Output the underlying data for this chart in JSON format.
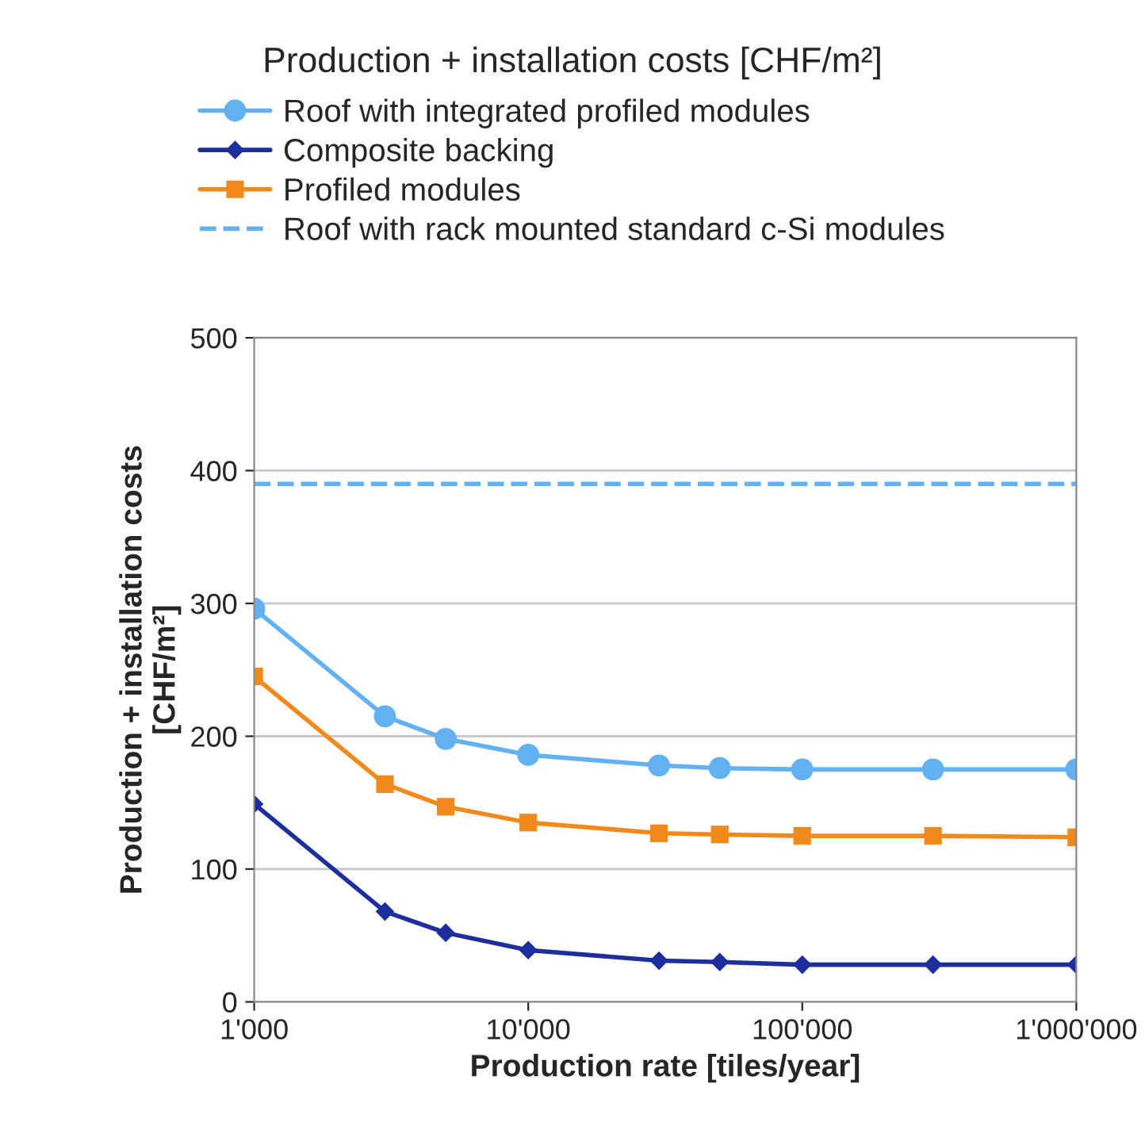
{
  "chart_data": {
    "type": "line",
    "title": "Production + installation costs [CHF/m²]",
    "xlabel": "Production rate [tiles/year]",
    "ylabel": "Production + installation costs\n[CHF/m²]",
    "x": [
      1000,
      3000,
      5000,
      10000,
      30000,
      50000,
      100000,
      300000,
      1000000
    ],
    "series": [
      {
        "name": "Roof with integrated profiled modules",
        "color": "#63b1f2",
        "marker": "circle",
        "values": [
          296,
          215,
          198,
          186,
          178,
          176,
          175,
          175,
          175
        ]
      },
      {
        "name": "Composite backing",
        "color": "#1c2f9c",
        "marker": "diamond",
        "values": [
          149,
          68,
          52,
          39,
          31,
          30,
          28,
          28,
          28
        ]
      },
      {
        "name": "Profiled modules",
        "color": "#f08a1c",
        "marker": "square",
        "values": [
          245,
          164,
          147,
          135,
          127,
          126,
          125,
          125,
          124
        ]
      },
      {
        "name": "Roof with rack mounted standard c-Si modules",
        "color": "#63b1f2",
        "marker": "none",
        "line_style": "dashed",
        "x": [
          1000,
          1000000
        ],
        "values": [
          390,
          390
        ]
      }
    ],
    "log": "x",
    "xlim": [
      1000,
      1000000
    ],
    "xticks": [
      {
        "value": 1000,
        "label": "1'000"
      },
      {
        "value": 10000,
        "label": "10'000"
      },
      {
        "value": 100000,
        "label": "100'000"
      },
      {
        "value": 1000000,
        "label": "1'000'000"
      }
    ],
    "ylim": [
      0,
      500
    ],
    "yticks": [
      0,
      100,
      200,
      300,
      400,
      500
    ],
    "grid": "y",
    "legend": "top"
  }
}
